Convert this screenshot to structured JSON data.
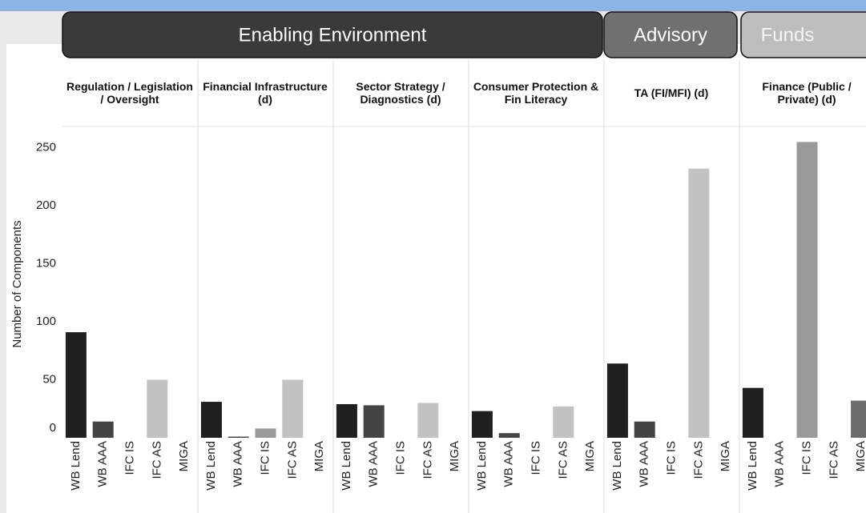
{
  "chart_data": {
    "type": "bar",
    "header_groups": [
      "Enabling Environment",
      "Advisory",
      "Funds"
    ],
    "y_label": "Number of Components",
    "categories": [
      "WB Lend",
      "WB AAA",
      "IFC IS",
      "IFC AS",
      "MIGA"
    ],
    "colors": [
      "#1f1f1f",
      "#444444",
      "#999999",
      "#c2c2c2",
      "#6b6b6b"
    ],
    "facets": [
      {
        "title": "Regulation / Legislation / Oversight",
        "values": [
          91,
          14,
          0,
          50,
          0
        ]
      },
      {
        "title": "Financial Infrastructure (d)",
        "values": [
          31,
          1,
          8,
          50,
          0
        ]
      },
      {
        "title": "Sector Strategy / Diagnostics (d)",
        "values": [
          29,
          28,
          0,
          30,
          0
        ]
      },
      {
        "title": "Consumer Protection & Fin Literacy",
        "values": [
          23,
          4,
          0,
          27,
          0
        ]
      },
      {
        "title": "TA (FI/MFI) (d)",
        "values": [
          64,
          14,
          0,
          232,
          0
        ]
      },
      {
        "title": "Finance (Public / Private) (d)",
        "values": [
          43,
          0,
          255,
          0,
          32
        ]
      }
    ],
    "ylim": [
      0,
      267
    ],
    "yticks": [
      0,
      50,
      100,
      150,
      200,
      250
    ],
    "grid": false
  }
}
